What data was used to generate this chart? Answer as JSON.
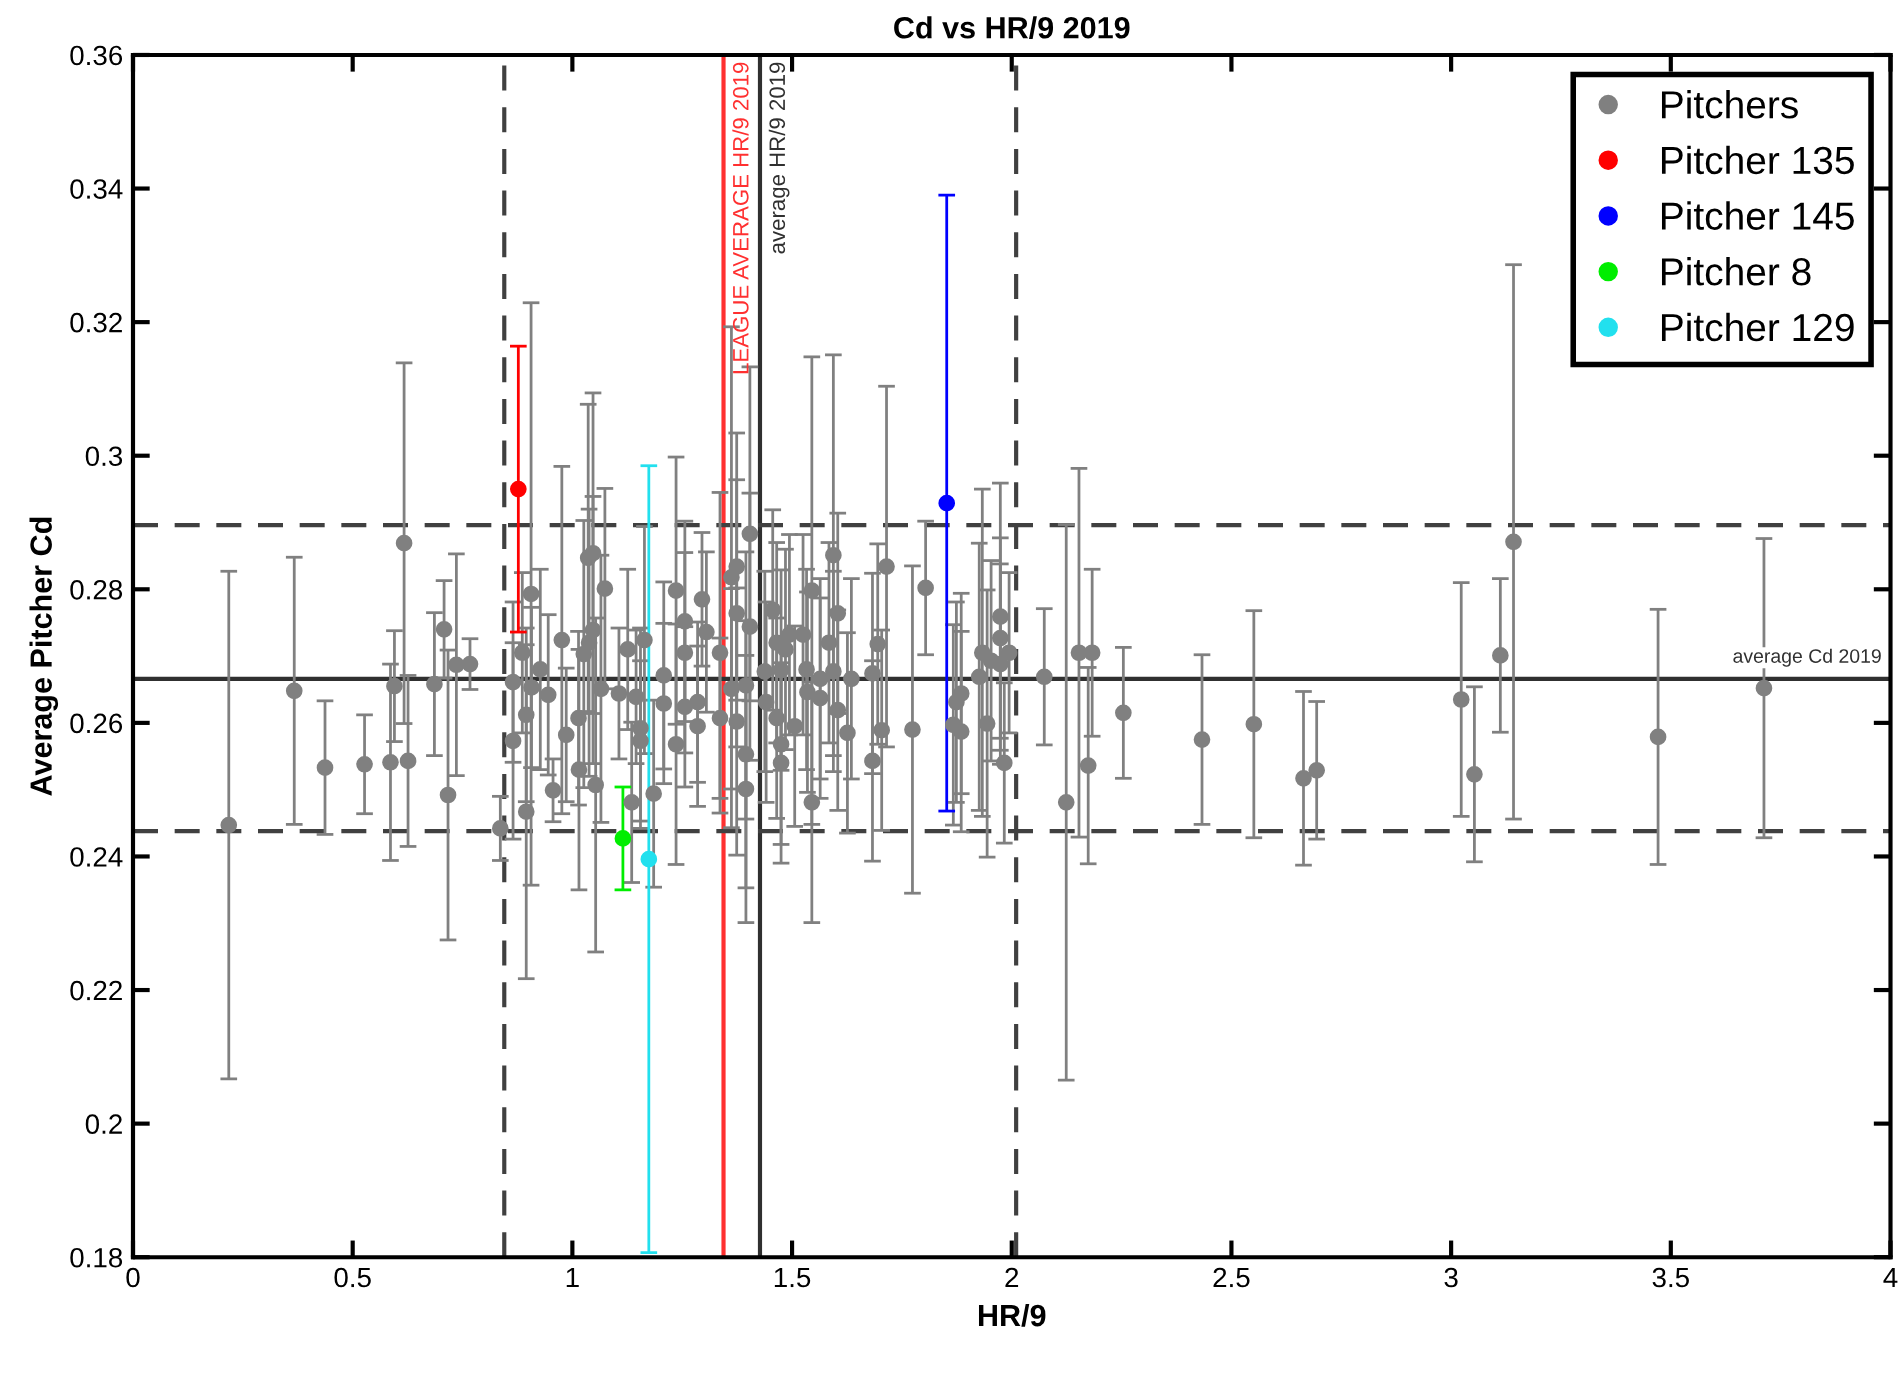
{
  "chart_data": {
    "type": "scatter",
    "title": "Cd vs HR/9 2019",
    "xlabel": "HR/9",
    "ylabel": "Average Pitcher Cd",
    "xlim": [
      0,
      4
    ],
    "xticks": [
      0,
      0.5,
      1,
      1.5,
      2,
      2.5,
      3,
      3.5,
      4
    ],
    "ylim": [
      0.18,
      0.36
    ],
    "yticks": [
      0.18,
      0.2,
      0.22,
      0.24,
      0.26,
      0.28,
      0.3,
      0.32,
      0.34,
      0.36
    ],
    "grid": false,
    "legend": "top right",
    "marker": "circle",
    "series": [
      {
        "name": "Pitchers",
        "color": "#808080",
        "x": [
          0.218,
          0.367,
          0.437,
          0.527,
          0.586,
          0.595,
          0.617,
          0.626,
          0.686,
          0.708,
          0.717,
          0.736,
          0.767,
          0.836,
          0.865,
          0.865,
          0.886,
          0.895,
          0.895,
          0.906,
          0.907,
          0.927,
          0.945,
          0.956,
          0.976,
          0.986,
          1.014,
          1.015,
          1.026,
          1.036,
          1.047,
          1.038,
          1.047,
          1.053,
          1.065,
          1.074,
          1.106,
          1.126,
          1.135,
          1.145,
          1.155,
          1.155,
          1.164,
          1.185,
          1.208,
          1.208,
          1.236,
          1.236,
          1.256,
          1.256,
          1.256,
          1.285,
          1.285,
          1.295,
          1.305,
          1.336,
          1.336,
          1.362,
          1.362,
          1.374,
          1.374,
          1.374,
          1.395,
          1.395,
          1.395,
          1.404,
          1.404,
          1.438,
          1.441,
          1.456,
          1.465,
          1.465,
          1.475,
          1.475,
          1.475,
          1.485,
          1.494,
          1.506,
          1.525,
          1.533,
          1.535,
          1.545,
          1.545,
          1.564,
          1.564,
          1.584,
          1.594,
          1.594,
          1.604,
          1.604,
          1.626,
          1.635,
          1.683,
          1.683,
          1.695,
          1.704,
          1.715,
          1.774,
          1.804,
          1.867,
          1.874,
          1.885,
          1.885,
          1.926,
          1.933,
          1.944,
          1.953,
          1.974,
          1.974,
          1.974,
          1.983,
          1.994,
          2.074,
          2.124,
          2.153,
          2.174,
          2.183,
          2.254,
          2.433,
          2.551,
          2.664,
          2.694,
          3.023,
          3.053,
          3.112,
          3.142,
          3.471,
          3.712
        ],
        "values": [
          0.2447,
          0.2648,
          0.2533,
          0.2538,
          0.2541,
          0.2655,
          0.2869,
          0.2543,
          0.2658,
          0.274,
          0.2492,
          0.2687,
          0.2688,
          0.2442,
          0.2573,
          0.2661,
          0.2705,
          0.2612,
          0.2467,
          0.2793,
          0.2653,
          0.268,
          0.2642,
          0.2499,
          0.2724,
          0.2582,
          0.2607,
          0.253,
          0.2703,
          0.2847,
          0.2854,
          0.272,
          0.2739,
          0.2507,
          0.2651,
          0.2801,
          0.2644,
          0.271,
          0.2481,
          0.2639,
          0.2592,
          0.2573,
          0.2724,
          0.2494,
          0.2671,
          0.2629,
          0.2798,
          0.2568,
          0.2752,
          0.2705,
          0.2624,
          0.2631,
          0.2595,
          0.2785,
          0.2736,
          0.2705,
          0.2607,
          0.2818,
          0.2651,
          0.2834,
          0.2764,
          0.2602,
          0.2656,
          0.2553,
          0.2501,
          0.2883,
          0.2744,
          0.2677,
          0.2631,
          0.2769,
          0.272,
          0.2607,
          0.2679,
          0.2568,
          0.254,
          0.271,
          0.2732,
          0.2595,
          0.2732,
          0.268,
          0.2646,
          0.2798,
          0.2481,
          0.2666,
          0.2637,
          0.272,
          0.2851,
          0.2677,
          0.2764,
          0.2619,
          0.2585,
          0.2666,
          0.2674,
          0.2543,
          0.2718,
          0.2589,
          0.2834,
          0.259,
          0.2802,
          0.2597,
          0.2631,
          0.2644,
          0.2587,
          0.2669,
          0.2705,
          0.2599,
          0.2693,
          0.2759,
          0.2727,
          0.2688,
          0.254,
          0.2705,
          0.2669,
          0.2481,
          0.2705,
          0.2536,
          0.2705,
          0.2615,
          0.2575,
          0.2598,
          0.2517,
          0.2529,
          0.2635,
          0.2523,
          0.2701,
          0.2871,
          0.2579,
          0.2652
        ],
        "errors": [
          0.038,
          0.02,
          0.01,
          0.0074,
          0.0147,
          0.0083,
          0.027,
          0.0128,
          0.0107,
          0.0073,
          0.0217,
          0.0166,
          0.0038,
          0.0048,
          0.0147,
          0.012,
          0.012,
          0.013,
          0.025,
          0.0436,
          0.012,
          0.015,
          0.012,
          0.0047,
          0.026,
          0.01,
          0.013,
          0.018,
          0.02,
          0.023,
          0.024,
          0.02,
          0.02,
          0.025,
          0.02,
          0.015,
          0.0098,
          0.012,
          0.012,
          0.01,
          0.015,
          0.012,
          0.017,
          0.014,
          0.014,
          0.012,
          0.02,
          0.018,
          0.015,
          0.015,
          0.012,
          0.012,
          0.012,
          0.01,
          0.012,
          0.024,
          0.012,
          0.0375,
          0.015,
          0.02,
          0.02,
          0.02,
          0.02,
          0.02,
          0.02,
          0.025,
          0.02,
          0.015,
          0.015,
          0.015,
          0.015,
          0.015,
          0.015,
          0.015,
          0.015,
          0.015,
          0.015,
          0.015,
          0.015,
          0.015,
          0.015,
          0.035,
          0.018,
          0.015,
          0.015,
          0.015,
          0.03,
          0.015,
          0.015,
          0.015,
          0.015,
          0.015,
          0.015,
          0.015,
          0.015,
          0.015,
          0.027,
          0.0245,
          0.01,
          0.015,
          0.015,
          0.015,
          0.015,
          0.02,
          0.0245,
          0.02,
          0.015,
          0.02,
          0.015,
          0.015,
          0.012,
          0.012,
          0.0102,
          0.0416,
          0.0276,
          0.0147,
          0.0125,
          0.0098,
          0.0127,
          0.017,
          0.013,
          0.0103,
          0.0175,
          0.0131,
          0.0115,
          0.0415,
          0.0191,
          0.0224
        ]
      },
      {
        "name": "Pitcher 135",
        "color": "#ff0000",
        "x": [
          0.877
        ],
        "values": [
          0.295
        ],
        "errors": [
          0.0214
        ]
      },
      {
        "name": "Pitcher 145",
        "color": "#0000ff",
        "x": [
          1.852
        ],
        "values": [
          0.2929
        ],
        "errors": [
          0.0461
        ]
      },
      {
        "name": "Pitcher 8",
        "color": "#00ee00",
        "x": [
          1.115
        ],
        "values": [
          0.2427
        ],
        "errors": [
          0.0077
        ]
      },
      {
        "name": "Pitcher 129",
        "color": "#22e0ee",
        "x": [
          1.174
        ],
        "values": [
          0.2396
        ],
        "errors": [
          0.0589
        ]
      }
    ],
    "ref_lines": [
      {
        "axis": "x",
        "value": 0.845,
        "label": null,
        "color": "#404040",
        "line_style": "dashed"
      },
      {
        "axis": "x",
        "value": 2.01,
        "label": null,
        "color": "#404040",
        "line_style": "dashed"
      },
      {
        "axis": "x",
        "value": 1.344,
        "label": "LEAGUE AVERAGE HR/9 2019",
        "color": "#ff3030",
        "line_style": "solid"
      },
      {
        "axis": "x",
        "value": 1.427,
        "label": "average HR/9 2019",
        "color": "#303030",
        "line_style": "solid"
      },
      {
        "axis": "y",
        "value": 0.2896,
        "label": null,
        "color": "#404040",
        "line_style": "dashed"
      },
      {
        "axis": "y",
        "value": 0.2438,
        "label": null,
        "color": "#404040",
        "line_style": "dashed"
      },
      {
        "axis": "y",
        "value": 0.2666,
        "label": "average Cd 2019",
        "color": "#303030",
        "line_style": "solid"
      }
    ]
  }
}
